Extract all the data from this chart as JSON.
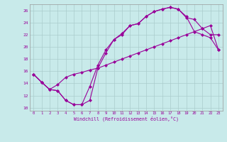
{
  "bg_color": "#c8eaea",
  "line_color": "#990099",
  "grid_color": "#aacccc",
  "xlabel": "Windchill (Refroidissement éolien,°C)",
  "ylim": [
    9.5,
    27.0
  ],
  "xlim": [
    -0.5,
    23.5
  ],
  "yticks": [
    10,
    12,
    14,
    16,
    18,
    20,
    22,
    24,
    26
  ],
  "xticks": [
    0,
    1,
    2,
    3,
    4,
    5,
    6,
    7,
    8,
    9,
    10,
    11,
    12,
    13,
    14,
    15,
    16,
    17,
    18,
    19,
    20,
    21,
    22,
    23
  ],
  "series1_x": [
    0,
    1,
    2,
    3,
    4,
    5,
    6,
    7,
    8,
    9,
    10,
    11,
    12,
    13,
    14,
    15,
    16,
    17,
    18,
    19,
    20,
    21,
    22,
    23
  ],
  "series1_y": [
    15.5,
    14.2,
    13.0,
    12.8,
    11.2,
    10.5,
    10.5,
    11.2,
    16.5,
    19.0,
    21.2,
    22.0,
    23.5,
    23.8,
    25.0,
    25.8,
    26.2,
    26.5,
    26.2,
    25.0,
    22.5,
    22.0,
    21.5,
    19.5
  ],
  "series2_x": [
    0,
    1,
    2,
    3,
    4,
    5,
    6,
    7,
    8,
    9,
    10,
    11,
    12,
    13,
    14,
    15,
    16,
    17,
    18,
    19,
    20,
    21,
    22,
    23
  ],
  "series2_y": [
    15.5,
    14.2,
    13.0,
    12.8,
    11.2,
    10.5,
    10.5,
    13.5,
    17.0,
    19.5,
    21.2,
    22.2,
    23.5,
    23.8,
    25.0,
    25.8,
    26.2,
    26.5,
    26.2,
    24.8,
    24.5,
    23.0,
    22.0,
    22.0
  ],
  "series3_x": [
    0,
    1,
    2,
    3,
    4,
    5,
    6,
    7,
    8,
    9,
    10,
    11,
    12,
    13,
    14,
    15,
    16,
    17,
    18,
    19,
    20,
    21,
    22,
    23
  ],
  "series3_y": [
    15.5,
    14.2,
    13.0,
    13.8,
    15.0,
    15.5,
    15.8,
    16.2,
    16.5,
    17.0,
    17.5,
    18.0,
    18.5,
    19.0,
    19.5,
    20.0,
    20.5,
    21.0,
    21.5,
    22.0,
    22.5,
    23.0,
    23.5,
    19.5
  ]
}
